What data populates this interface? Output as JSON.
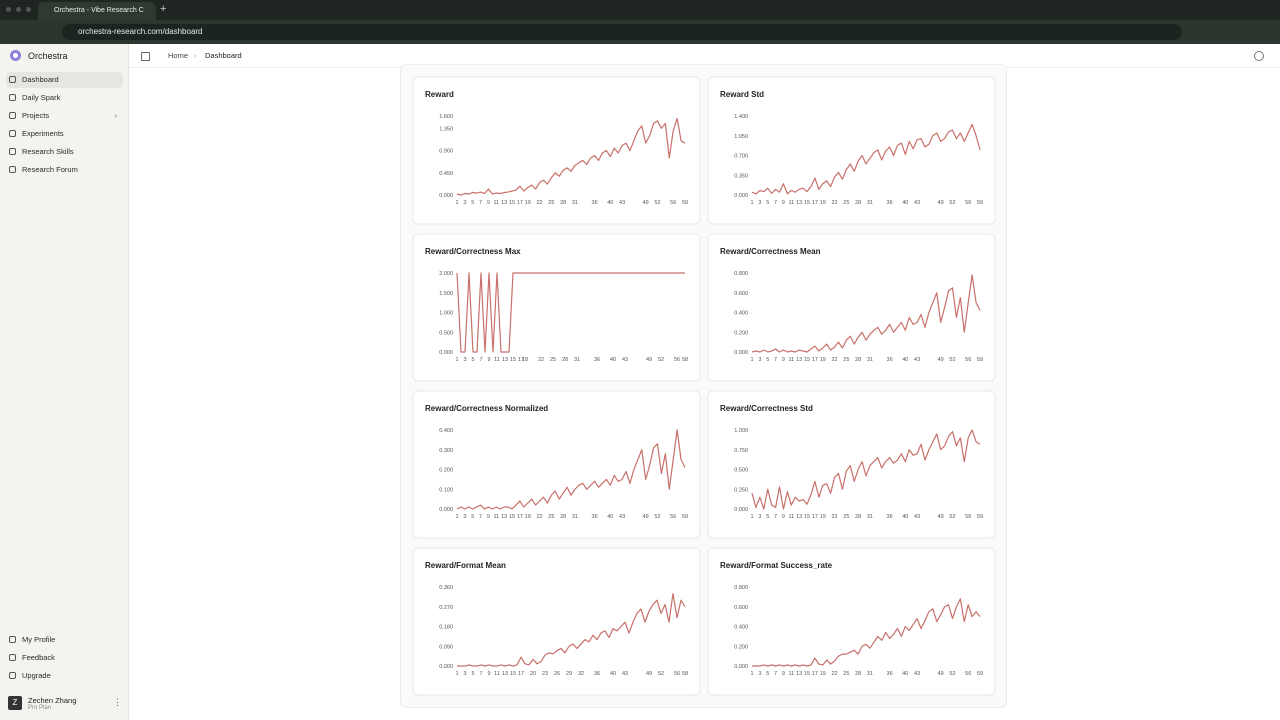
{
  "browser": {
    "tab_title": "Orchestra - Vibe Research C",
    "url": "orchestra-research.com/dashboard"
  },
  "sidebar": {
    "brand": "Orchestra",
    "nav": [
      "Dashboard",
      "Daily Spark",
      "Projects",
      "Experiments",
      "Research Skills",
      "Research Forum"
    ],
    "footer": [
      "My Profile",
      "Feedback",
      "Upgrade"
    ],
    "user": {
      "initial": "Z",
      "name": "Zechen Zhang",
      "plan": "Pro Plan"
    }
  },
  "breadcrumb": [
    "Home",
    "Dashboard"
  ],
  "chart_data": [
    {
      "type": "line",
      "title": "Reward",
      "color": "#c8706a",
      "xlim": [
        1,
        59
      ],
      "ylim": [
        0,
        1.6
      ],
      "yticks": [
        {
          "value": 0,
          "label": "0.000"
        },
        {
          "value": 0.45,
          "label": "0.450"
        },
        {
          "value": 0.9,
          "label": "0.900"
        },
        {
          "value": 1.35,
          "label": "1.350"
        },
        {
          "value": 1.6,
          "label": "1.600"
        }
      ],
      "xticks": [
        1,
        3,
        5,
        7,
        9,
        11,
        13,
        15,
        17,
        19,
        22,
        25,
        28,
        31,
        36,
        40,
        43,
        49,
        52,
        56,
        59
      ],
      "x": [
        1,
        2,
        3,
        4,
        5,
        6,
        7,
        8,
        9,
        10,
        11,
        12,
        13,
        14,
        15,
        16,
        17,
        18,
        19,
        20,
        21,
        22,
        23,
        24,
        25,
        26,
        27,
        28,
        29,
        30,
        31,
        32,
        33,
        34,
        35,
        36,
        37,
        38,
        39,
        40,
        41,
        42,
        43,
        44,
        45,
        46,
        47,
        48,
        49,
        50,
        51,
        52,
        53,
        54,
        55,
        56,
        57,
        58,
        59
      ],
      "values": [
        0.02,
        0.0,
        0.03,
        0.02,
        0.05,
        0.04,
        0.06,
        0.03,
        0.12,
        0.02,
        0.04,
        0.03,
        0.05,
        0.06,
        0.08,
        0.1,
        0.18,
        0.08,
        0.15,
        0.2,
        0.12,
        0.25,
        0.3,
        0.22,
        0.35,
        0.45,
        0.38,
        0.5,
        0.55,
        0.48,
        0.6,
        0.65,
        0.7,
        0.62,
        0.75,
        0.8,
        0.7,
        0.85,
        0.9,
        0.78,
        0.95,
        0.85,
        1.0,
        1.05,
        0.9,
        1.1,
        1.3,
        1.4,
        1.05,
        1.2,
        1.45,
        1.5,
        1.35,
        1.45,
        0.75,
        1.3,
        1.55,
        1.1,
        1.05
      ]
    },
    {
      "type": "line",
      "title": "Reward Std",
      "color": "#c8706a",
      "xlim": [
        1,
        59
      ],
      "ylim": [
        0,
        1.4
      ],
      "yticks": [
        {
          "value": 0,
          "label": "0.000"
        },
        {
          "value": 0.35,
          "label": "0.350"
        },
        {
          "value": 0.7,
          "label": "0.700"
        },
        {
          "value": 1.05,
          "label": "1.050"
        },
        {
          "value": 1.4,
          "label": "1.400"
        }
      ],
      "xticks": [
        1,
        3,
        5,
        7,
        9,
        11,
        13,
        15,
        17,
        19,
        22,
        25,
        28,
        31,
        36,
        40,
        43,
        49,
        52,
        56,
        59
      ],
      "x": [
        1,
        2,
        3,
        4,
        5,
        6,
        7,
        8,
        9,
        10,
        11,
        12,
        13,
        14,
        15,
        16,
        17,
        18,
        19,
        20,
        21,
        22,
        23,
        24,
        25,
        26,
        27,
        28,
        29,
        30,
        31,
        32,
        33,
        34,
        35,
        36,
        37,
        38,
        39,
        40,
        41,
        42,
        43,
        44,
        45,
        46,
        47,
        48,
        49,
        50,
        51,
        52,
        53,
        54,
        55,
        56,
        57,
        58,
        59
      ],
      "values": [
        0.05,
        0.02,
        0.08,
        0.06,
        0.12,
        0.03,
        0.1,
        0.05,
        0.2,
        0.02,
        0.08,
        0.05,
        0.1,
        0.12,
        0.06,
        0.15,
        0.3,
        0.1,
        0.2,
        0.25,
        0.15,
        0.32,
        0.4,
        0.28,
        0.45,
        0.55,
        0.42,
        0.6,
        0.7,
        0.55,
        0.65,
        0.75,
        0.8,
        0.62,
        0.78,
        0.85,
        0.7,
        0.88,
        0.92,
        0.72,
        0.95,
        0.82,
        0.98,
        1.0,
        0.85,
        0.9,
        1.05,
        1.1,
        0.95,
        1.0,
        1.12,
        1.15,
        1.0,
        1.1,
        0.95,
        1.1,
        1.25,
        1.05,
        0.8
      ]
    },
    {
      "type": "line",
      "title": "Reward/Correctness Max",
      "color": "#c8706a",
      "xlim": [
        1,
        58
      ],
      "ylim": [
        0,
        2
      ],
      "yticks": [
        {
          "value": 0,
          "label": "0.000"
        },
        {
          "value": 0.5,
          "label": "0.500"
        },
        {
          "value": 1,
          "label": "1.000"
        },
        {
          "value": 1.5,
          "label": "1.500"
        },
        {
          "value": 2,
          "label": "2.000"
        }
      ],
      "xticks": [
        1,
        3,
        5,
        7,
        9,
        11,
        13,
        15,
        17,
        18,
        22,
        25,
        28,
        31,
        36,
        40,
        43,
        49,
        52,
        56,
        58
      ],
      "x": [
        1,
        2,
        3,
        4,
        5,
        6,
        7,
        8,
        9,
        10,
        11,
        12,
        13,
        14,
        15,
        16,
        17,
        18,
        19,
        20,
        21,
        22,
        23,
        24,
        25,
        26,
        27,
        28,
        29,
        30,
        31,
        32,
        33,
        34,
        35,
        36,
        37,
        38,
        39,
        40,
        41,
        42,
        43,
        44,
        45,
        46,
        47,
        48,
        49,
        50,
        51,
        52,
        53,
        54,
        55,
        56,
        57,
        58
      ],
      "values": [
        2,
        0,
        0,
        2,
        0,
        0,
        2,
        0,
        2,
        0,
        2,
        0,
        0,
        0,
        2,
        2,
        2,
        2,
        2,
        2,
        2,
        2,
        2,
        2,
        2,
        2,
        2,
        2,
        2,
        2,
        2,
        2,
        2,
        2,
        2,
        2,
        2,
        2,
        2,
        2,
        2,
        2,
        2,
        2,
        2,
        2,
        2,
        2,
        2,
        2,
        2,
        2,
        2,
        2,
        2,
        2,
        2,
        2
      ]
    },
    {
      "type": "line",
      "title": "Reward/Correctness Mean",
      "color": "#c8706a",
      "xlim": [
        1,
        59
      ],
      "ylim": [
        0,
        0.8
      ],
      "yticks": [
        {
          "value": 0,
          "label": "0.000"
        },
        {
          "value": 0.2,
          "label": "0.200"
        },
        {
          "value": 0.4,
          "label": "0.400"
        },
        {
          "value": 0.6,
          "label": "0.600"
        },
        {
          "value": 0.8,
          "label": "0.800"
        }
      ],
      "xticks": [
        1,
        3,
        5,
        7,
        9,
        11,
        13,
        15,
        17,
        19,
        22,
        25,
        28,
        31,
        36,
        40,
        43,
        49,
        52,
        56,
        59
      ],
      "x": [
        1,
        2,
        3,
        4,
        5,
        6,
        7,
        8,
        9,
        10,
        11,
        12,
        13,
        14,
        15,
        16,
        17,
        18,
        19,
        20,
        21,
        22,
        23,
        24,
        25,
        26,
        27,
        28,
        29,
        30,
        31,
        32,
        33,
        34,
        35,
        36,
        37,
        38,
        39,
        40,
        41,
        42,
        43,
        44,
        45,
        46,
        47,
        48,
        49,
        50,
        51,
        52,
        53,
        54,
        55,
        56,
        57,
        58,
        59
      ],
      "values": [
        0.0,
        0.01,
        0.0,
        0.02,
        0.0,
        0.01,
        0.03,
        0.0,
        0.02,
        0.0,
        0.01,
        0.0,
        0.02,
        0.01,
        0.0,
        0.03,
        0.06,
        0.01,
        0.04,
        0.08,
        0.02,
        0.05,
        0.1,
        0.04,
        0.12,
        0.16,
        0.08,
        0.15,
        0.2,
        0.12,
        0.18,
        0.22,
        0.25,
        0.18,
        0.22,
        0.28,
        0.2,
        0.25,
        0.3,
        0.22,
        0.35,
        0.28,
        0.3,
        0.38,
        0.25,
        0.4,
        0.5,
        0.6,
        0.3,
        0.45,
        0.62,
        0.65,
        0.35,
        0.55,
        0.2,
        0.5,
        0.78,
        0.5,
        0.42
      ]
    },
    {
      "type": "line",
      "title": "Reward/Correctness Normalized",
      "color": "#c8706a",
      "xlim": [
        1,
        59
      ],
      "ylim": [
        0,
        0.4
      ],
      "yticks": [
        {
          "value": 0,
          "label": "0.000"
        },
        {
          "value": 0.1,
          "label": "0.100"
        },
        {
          "value": 0.2,
          "label": "0.200"
        },
        {
          "value": 0.3,
          "label": "0.300"
        },
        {
          "value": 0.4,
          "label": "0.400"
        }
      ],
      "xticks": [
        1,
        3,
        5,
        7,
        9,
        11,
        13,
        15,
        17,
        19,
        22,
        25,
        28,
        31,
        36,
        40,
        43,
        49,
        52,
        56,
        59
      ],
      "x": [
        1,
        2,
        3,
        4,
        5,
        6,
        7,
        8,
        9,
        10,
        11,
        12,
        13,
        14,
        15,
        16,
        17,
        18,
        19,
        20,
        21,
        22,
        23,
        24,
        25,
        26,
        27,
        28,
        29,
        30,
        31,
        32,
        33,
        34,
        35,
        36,
        37,
        38,
        39,
        40,
        41,
        42,
        43,
        44,
        45,
        46,
        47,
        48,
        49,
        50,
        51,
        52,
        53,
        54,
        55,
        56,
        57,
        58,
        59
      ],
      "values": [
        0.0,
        0.01,
        0.0,
        0.01,
        0.0,
        0.01,
        0.02,
        0.0,
        0.01,
        0.0,
        0.01,
        0.0,
        0.01,
        0.01,
        0.0,
        0.02,
        0.04,
        0.01,
        0.03,
        0.05,
        0.02,
        0.04,
        0.06,
        0.03,
        0.07,
        0.09,
        0.05,
        0.08,
        0.11,
        0.07,
        0.1,
        0.12,
        0.13,
        0.1,
        0.12,
        0.14,
        0.11,
        0.13,
        0.15,
        0.12,
        0.17,
        0.14,
        0.15,
        0.19,
        0.13,
        0.2,
        0.25,
        0.3,
        0.15,
        0.22,
        0.31,
        0.33,
        0.18,
        0.28,
        0.1,
        0.25,
        0.4,
        0.25,
        0.21
      ]
    },
    {
      "type": "line",
      "title": "Reward/Correctness Std",
      "color": "#c8706a",
      "xlim": [
        1,
        59
      ],
      "ylim": [
        0,
        1
      ],
      "yticks": [
        {
          "value": 0,
          "label": "0.000"
        },
        {
          "value": 0.25,
          "label": "0.250"
        },
        {
          "value": 0.5,
          "label": "0.500"
        },
        {
          "value": 0.75,
          "label": "0.750"
        },
        {
          "value": 1,
          "label": "1.000"
        }
      ],
      "xticks": [
        1,
        3,
        5,
        7,
        9,
        11,
        13,
        15,
        17,
        19,
        22,
        25,
        28,
        31,
        36,
        40,
        43,
        49,
        52,
        56,
        59
      ],
      "x": [
        1,
        2,
        3,
        4,
        5,
        6,
        7,
        8,
        9,
        10,
        11,
        12,
        13,
        14,
        15,
        16,
        17,
        18,
        19,
        20,
        21,
        22,
        23,
        24,
        25,
        26,
        27,
        28,
        29,
        30,
        31,
        32,
        33,
        34,
        35,
        36,
        37,
        38,
        39,
        40,
        41,
        42,
        43,
        44,
        45,
        46,
        47,
        48,
        49,
        50,
        51,
        52,
        53,
        54,
        55,
        56,
        57,
        58,
        59
      ],
      "values": [
        0.2,
        0.02,
        0.15,
        0.0,
        0.25,
        0.05,
        0.02,
        0.28,
        0.0,
        0.22,
        0.05,
        0.15,
        0.1,
        0.12,
        0.06,
        0.18,
        0.35,
        0.15,
        0.3,
        0.32,
        0.2,
        0.4,
        0.45,
        0.25,
        0.48,
        0.55,
        0.35,
        0.5,
        0.6,
        0.42,
        0.55,
        0.6,
        0.65,
        0.52,
        0.6,
        0.65,
        0.58,
        0.62,
        0.7,
        0.6,
        0.75,
        0.68,
        0.7,
        0.82,
        0.62,
        0.75,
        0.85,
        0.95,
        0.75,
        0.8,
        0.92,
        0.98,
        0.8,
        0.9,
        0.6,
        0.9,
        1.0,
        0.85,
        0.82
      ]
    },
    {
      "type": "line",
      "title": "Reward/Format Mean",
      "color": "#c8706a",
      "xlim": [
        1,
        58
      ],
      "ylim": [
        0,
        0.36
      ],
      "yticks": [
        {
          "value": 0,
          "label": "0.000"
        },
        {
          "value": 0.09,
          "label": "0.090"
        },
        {
          "value": 0.18,
          "label": "0.180"
        },
        {
          "value": 0.27,
          "label": "0.270"
        },
        {
          "value": 0.36,
          "label": "0.360"
        }
      ],
      "xticks": [
        1,
        3,
        5,
        7,
        9,
        11,
        13,
        15,
        17,
        20,
        23,
        26,
        29,
        32,
        36,
        40,
        43,
        49,
        52,
        56,
        58
      ],
      "x": [
        1,
        2,
        3,
        4,
        5,
        6,
        7,
        8,
        9,
        10,
        11,
        12,
        13,
        14,
        15,
        16,
        17,
        18,
        19,
        20,
        21,
        22,
        23,
        24,
        25,
        26,
        27,
        28,
        29,
        30,
        31,
        32,
        33,
        34,
        35,
        36,
        37,
        38,
        39,
        40,
        41,
        42,
        43,
        44,
        45,
        46,
        47,
        48,
        49,
        50,
        51,
        52,
        53,
        54,
        55,
        56,
        57,
        58
      ],
      "values": [
        0.0,
        0.0,
        0.0,
        0.005,
        0.0,
        0.0,
        0.005,
        0.0,
        0.005,
        0.0,
        0.0,
        0.005,
        0.0,
        0.005,
        0.0,
        0.005,
        0.04,
        0.01,
        0.005,
        0.03,
        0.01,
        0.02,
        0.05,
        0.06,
        0.055,
        0.07,
        0.08,
        0.06,
        0.09,
        0.1,
        0.08,
        0.1,
        0.12,
        0.11,
        0.14,
        0.12,
        0.15,
        0.16,
        0.13,
        0.17,
        0.16,
        0.18,
        0.2,
        0.15,
        0.2,
        0.24,
        0.26,
        0.2,
        0.25,
        0.28,
        0.3,
        0.24,
        0.28,
        0.2,
        0.33,
        0.22,
        0.3,
        0.27
      ]
    },
    {
      "type": "line",
      "title": "Reward/Format Success_rate",
      "color": "#c8706a",
      "xlim": [
        1,
        59
      ],
      "ylim": [
        0,
        0.8
      ],
      "yticks": [
        {
          "value": 0,
          "label": "0.000"
        },
        {
          "value": 0.2,
          "label": "0.200"
        },
        {
          "value": 0.4,
          "label": "0.400"
        },
        {
          "value": 0.6,
          "label": "0.600"
        },
        {
          "value": 0.8,
          "label": "0.800"
        }
      ],
      "xticks": [
        1,
        3,
        5,
        7,
        9,
        11,
        13,
        15,
        17,
        19,
        22,
        25,
        28,
        31,
        36,
        40,
        43,
        49,
        52,
        56,
        59
      ],
      "x": [
        1,
        2,
        3,
        4,
        5,
        6,
        7,
        8,
        9,
        10,
        11,
        12,
        13,
        14,
        15,
        16,
        17,
        18,
        19,
        20,
        21,
        22,
        23,
        24,
        25,
        26,
        27,
        28,
        29,
        30,
        31,
        32,
        33,
        34,
        35,
        36,
        37,
        38,
        39,
        40,
        41,
        42,
        43,
        44,
        45,
        46,
        47,
        48,
        49,
        50,
        51,
        52,
        53,
        54,
        55,
        56,
        57,
        58,
        59
      ],
      "values": [
        0.0,
        0.0,
        0.0,
        0.01,
        0.0,
        0.01,
        0.0,
        0.01,
        0.0,
        0.01,
        0.0,
        0.01,
        0.0,
        0.01,
        0.0,
        0.01,
        0.08,
        0.02,
        0.01,
        0.06,
        0.02,
        0.05,
        0.1,
        0.12,
        0.12,
        0.14,
        0.16,
        0.12,
        0.2,
        0.22,
        0.18,
        0.24,
        0.3,
        0.26,
        0.34,
        0.28,
        0.32,
        0.38,
        0.3,
        0.4,
        0.36,
        0.42,
        0.48,
        0.38,
        0.46,
        0.55,
        0.58,
        0.45,
        0.52,
        0.6,
        0.62,
        0.48,
        0.6,
        0.68,
        0.45,
        0.62,
        0.5,
        0.55,
        0.5
      ]
    }
  ]
}
